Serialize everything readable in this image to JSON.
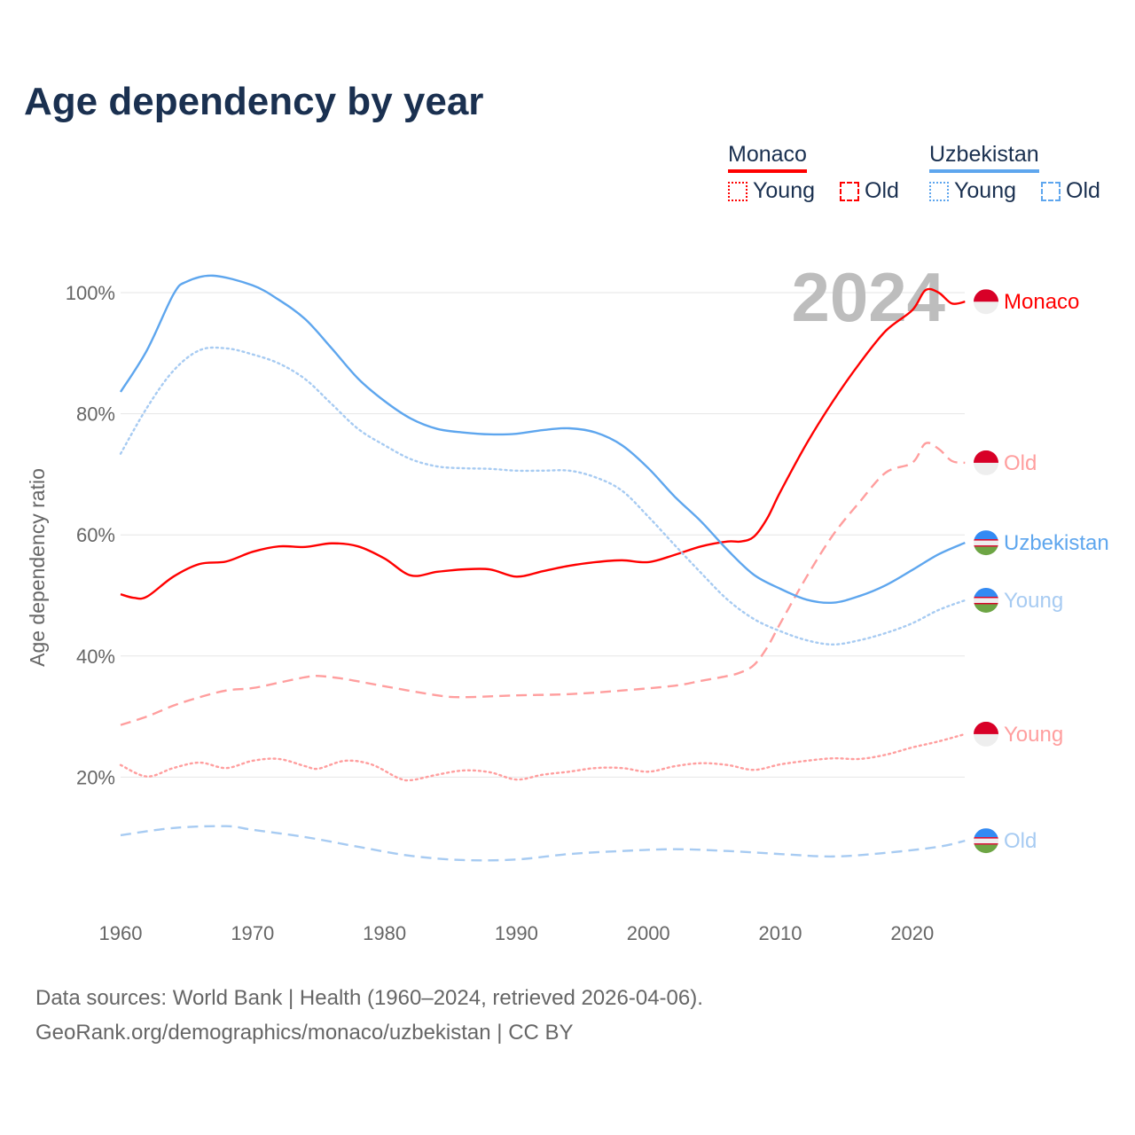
{
  "colors": {
    "monaco": "#ff0000",
    "monaco_light": "#ff9e9e",
    "uzbekistan": "#5ea6ee",
    "uzbekistan_light": "#a7cbf2",
    "grid": "#e6e6e6",
    "axis_text": "#666666",
    "title": "#1a3050",
    "year_watermark": "#bdbdbd"
  },
  "legend": {
    "groups": [
      {
        "country": "Monaco",
        "items": [
          "Young",
          "Old"
        ]
      },
      {
        "country": "Uzbekistan",
        "items": [
          "Young",
          "Old"
        ]
      }
    ]
  },
  "footer": {
    "line1": "Data sources: World Bank | Health (1960–2024, retrieved 2026-04-06).",
    "line2": "GeoRank.org/demographics/monaco/uzbekistan | CC BY"
  },
  "chart_data": {
    "type": "line",
    "title": "Age dependency by year",
    "ylabel": "Age dependency ratio",
    "xlabel": "",
    "year_watermark": "2024",
    "xlim": [
      1960,
      2024
    ],
    "ylim": [
      0,
      105
    ],
    "xticks": [
      1960,
      1970,
      1980,
      1990,
      2000,
      2010,
      2020
    ],
    "yticks": [
      {
        "v": 20,
        "label": "20%"
      },
      {
        "v": 40,
        "label": "40%"
      },
      {
        "v": 60,
        "label": "60%"
      },
      {
        "v": 80,
        "label": "80%"
      },
      {
        "v": 100,
        "label": "100%"
      }
    ],
    "grid": true,
    "series": [
      {
        "name": "Monaco",
        "end_label": "Monaco",
        "country": "monaco",
        "style": "solid",
        "color": "#ff0000",
        "x": [
          1960,
          1961,
          1962,
          1964,
          1966,
          1968,
          1970,
          1972,
          1974,
          1976,
          1978,
          1980,
          1982,
          1984,
          1986,
          1988,
          1990,
          1992,
          1994,
          1996,
          1998,
          2000,
          2002,
          2004,
          2006,
          2007,
          2008,
          2009,
          2010,
          2012,
          2014,
          2016,
          2018,
          2020,
          2021,
          2022,
          2023,
          2024
        ],
        "y": [
          50.2,
          49.6,
          49.8,
          53.1,
          55.2,
          55.6,
          57.2,
          58.1,
          58.0,
          58.6,
          58.1,
          56.1,
          53.3,
          53.9,
          54.3,
          54.3,
          53.1,
          54.0,
          54.9,
          55.5,
          55.8,
          55.5,
          56.7,
          58.1,
          58.9,
          58.9,
          59.7,
          62.7,
          67.1,
          75.1,
          82.1,
          88.3,
          93.7,
          97.1,
          100.4,
          100.0,
          98.2,
          98.5
        ]
      },
      {
        "name": "Monaco Old",
        "end_label": "Old",
        "country": "monaco",
        "style": "dashed",
        "color": "#ff9e9e",
        "x": [
          1960,
          1962,
          1964,
          1966,
          1968,
          1970,
          1972,
          1974,
          1975,
          1977,
          1980,
          1984,
          1986,
          1990,
          1994,
          1998,
          2002,
          2004,
          2006,
          2007,
          2008,
          2009,
          2010,
          2012,
          2014,
          2016,
          2018,
          2020,
          2021,
          2022,
          2023,
          2024
        ],
        "y": [
          28.6,
          30.0,
          31.8,
          33.2,
          34.3,
          34.7,
          35.6,
          36.5,
          36.7,
          36.2,
          35.0,
          33.5,
          33.2,
          33.5,
          33.7,
          34.3,
          35.1,
          35.9,
          36.7,
          37.3,
          38.5,
          41.4,
          45.4,
          53.1,
          60.0,
          65.4,
          70.3,
          71.9,
          75.1,
          74.2,
          72.2,
          71.9
        ]
      },
      {
        "name": "Monaco Young",
        "end_label": "Young",
        "country": "monaco",
        "style": "dotted",
        "color": "#ff9e9e",
        "x": [
          1960,
          1962,
          1964,
          1966,
          1968,
          1970,
          1972,
          1974,
          1975,
          1977,
          1979,
          1981,
          1982,
          1984,
          1986,
          1988,
          1990,
          1992,
          1994,
          1996,
          1998,
          2000,
          2002,
          2004,
          2006,
          2008,
          2010,
          2012,
          2014,
          2016,
          2018,
          2020,
          2022,
          2024
        ],
        "y": [
          22.0,
          20.1,
          21.5,
          22.4,
          21.5,
          22.7,
          23.0,
          21.8,
          21.4,
          22.7,
          22.1,
          19.9,
          19.5,
          20.4,
          21.1,
          20.8,
          19.6,
          20.4,
          20.9,
          21.5,
          21.5,
          20.9,
          21.8,
          22.3,
          22.0,
          21.2,
          22.1,
          22.7,
          23.1,
          23.0,
          23.7,
          24.9,
          25.9,
          27.1
        ]
      },
      {
        "name": "Uzbekistan",
        "end_label": "Uzbekistan",
        "country": "uzbekistan",
        "style": "solid",
        "color": "#5ea6ee",
        "x": [
          1960,
          1962,
          1964,
          1965,
          1967,
          1970,
          1972,
          1974,
          1976,
          1978,
          1980,
          1982,
          1984,
          1986,
          1988,
          1990,
          1992,
          1994,
          1996,
          1998,
          2000,
          2002,
          2004,
          2006,
          2008,
          2010,
          2012,
          2014,
          2016,
          2018,
          2020,
          2022,
          2024
        ],
        "y": [
          83.6,
          90.5,
          99.7,
          101.8,
          102.8,
          101.2,
          98.8,
          95.6,
          90.8,
          85.8,
          82.1,
          79.2,
          77.5,
          76.9,
          76.6,
          76.7,
          77.3,
          77.6,
          76.9,
          74.8,
          71.0,
          66.3,
          62.2,
          57.5,
          53.4,
          51.1,
          49.3,
          48.8,
          49.9,
          51.7,
          54.2,
          56.8,
          58.7
        ]
      },
      {
        "name": "Uzbekistan Young",
        "end_label": "Young",
        "country": "uzbekistan",
        "style": "dotted",
        "color": "#a7cbf2",
        "x": [
          1960,
          1962,
          1964,
          1966,
          1968,
          1970,
          1972,
          1974,
          1976,
          1978,
          1980,
          1982,
          1984,
          1986,
          1988,
          1990,
          1992,
          1994,
          1996,
          1998,
          2000,
          2002,
          2004,
          2006,
          2008,
          2010,
          2012,
          2014,
          2016,
          2018,
          2020,
          2022,
          2024
        ],
        "y": [
          73.4,
          81.0,
          87.1,
          90.5,
          90.8,
          89.8,
          88.3,
          85.7,
          81.6,
          77.5,
          74.8,
          72.5,
          71.3,
          71.0,
          70.9,
          70.6,
          70.6,
          70.6,
          69.5,
          67.3,
          63.0,
          58.3,
          53.7,
          49.3,
          46.1,
          44.1,
          42.6,
          41.9,
          42.6,
          43.8,
          45.4,
          47.6,
          49.2
        ]
      },
      {
        "name": "Uzbekistan Old",
        "end_label": "Old",
        "country": "uzbekistan",
        "style": "dashed",
        "color": "#a7cbf2",
        "x": [
          1960,
          1964,
          1968,
          1970,
          1974,
          1978,
          1982,
          1986,
          1990,
          1994,
          1998,
          2002,
          2006,
          2010,
          2014,
          2018,
          2022,
          2024
        ],
        "y": [
          10.4,
          11.6,
          11.9,
          11.3,
          10.1,
          8.5,
          7.0,
          6.3,
          6.4,
          7.3,
          7.8,
          8.1,
          7.8,
          7.3,
          6.9,
          7.5,
          8.5,
          9.5
        ]
      }
    ]
  }
}
